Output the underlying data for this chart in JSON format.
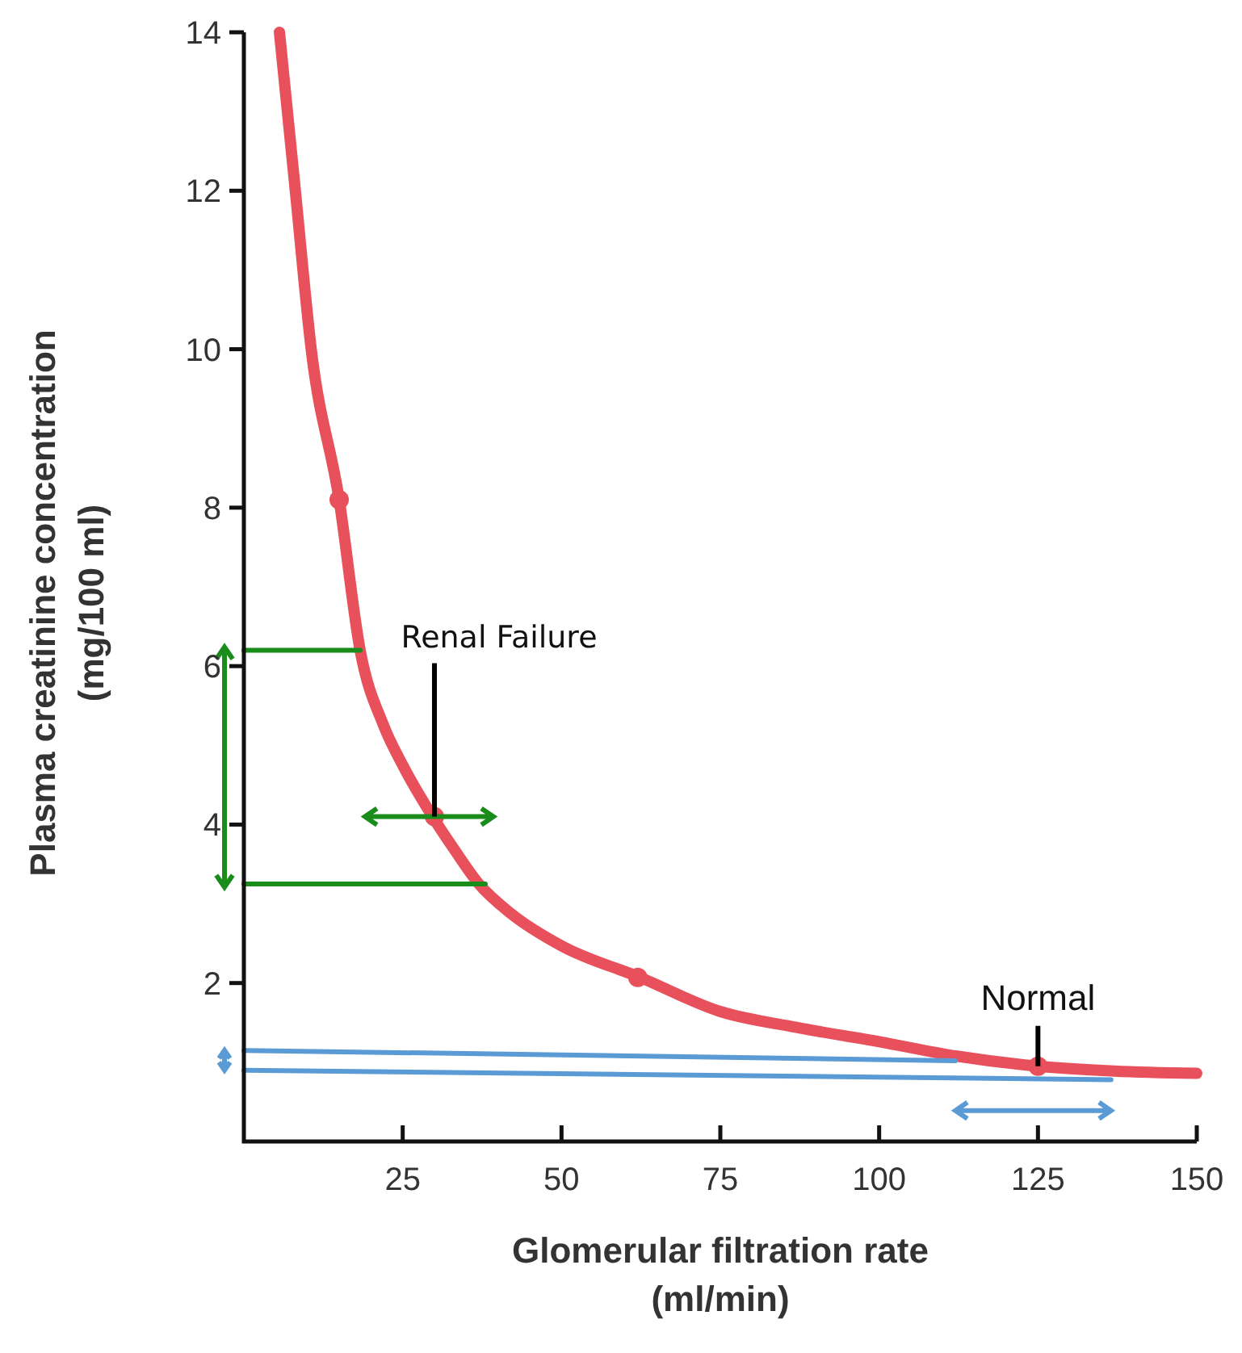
{
  "chart_data": {
    "type": "line",
    "xlabel": "Glomerular filtration rate\n(ml/min)",
    "ylabel": "Plasma creatinine concentration\n(mg/100 ml)",
    "xlim": [
      0,
      150
    ],
    "ylim": [
      0,
      14
    ],
    "xticks": [
      25,
      50,
      75,
      100,
      125,
      150
    ],
    "yticks": [
      2,
      4,
      6,
      8,
      10,
      12,
      14
    ],
    "series": [
      {
        "color": "#e8505b",
        "x": [
          5.6,
          8.1,
          10.6,
          15,
          18.3,
          22,
          25,
          29.7,
          33,
          37,
          42,
          50,
          62.4,
          75,
          87,
          100,
          112,
          125,
          137,
          150
        ],
        "values": [
          14,
          12,
          10,
          8.1,
          6.2,
          5.25,
          4.75,
          4.1,
          3.7,
          3.25,
          2.88,
          2.47,
          2.07,
          1.64,
          1.44,
          1.26,
          1.08,
          0.95,
          0.89,
          0.86
        ]
      },
      {
        "type": "scatter",
        "color": "#e8505b",
        "marker": "circle",
        "x": [
          15,
          30,
          62,
          125
        ],
        "values": [
          8.1,
          4.1,
          2.07,
          0.95
        ]
      },
      {
        "color": "#1a8c1a",
        "x": [
          0,
          18.3
        ],
        "values": [
          6.2,
          6.2
        ]
      },
      {
        "color": "#1a8c1a",
        "x": [
          0,
          38
        ],
        "values": [
          3.25,
          3.25
        ]
      },
      {
        "color": "#5b9bd5",
        "x": [
          0,
          112
        ],
        "values": [
          1.15,
          1.02
        ]
      },
      {
        "color": "#5b9bd5",
        "x": [
          0,
          136.5
        ],
        "values": [
          0.9,
          0.78
        ]
      }
    ],
    "annotations": [
      {
        "text": "Renal Failure",
        "x": 30,
        "y": 4.1
      },
      {
        "text": "Normal",
        "x": 125,
        "y": 0.95
      }
    ]
  }
}
